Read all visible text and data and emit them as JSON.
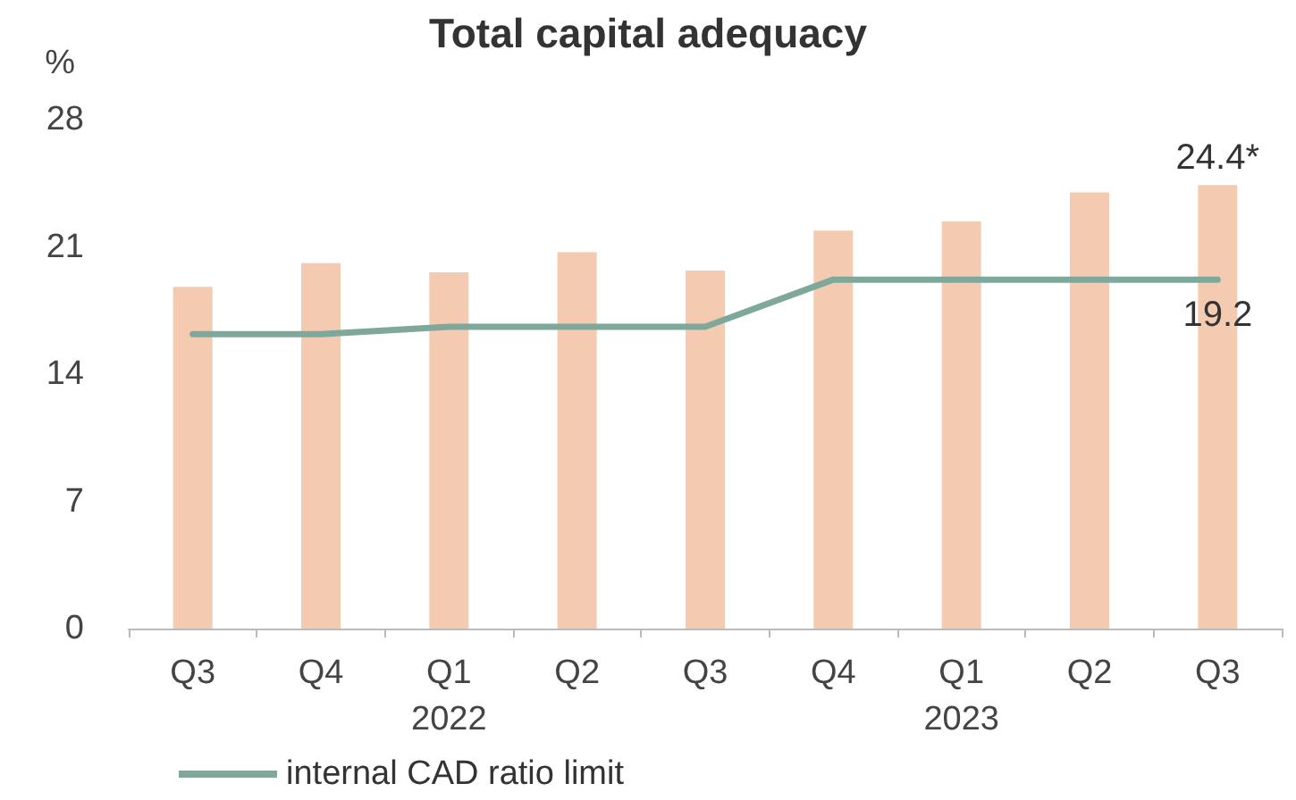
{
  "chart_data": {
    "type": "bar",
    "title": "Total capital adequacy",
    "ylabel": "%",
    "categories": [
      "Q3",
      "Q4",
      "Q1\n2022",
      "Q2",
      "Q3",
      "Q4",
      "Q1\n2023",
      "Q2",
      "Q3"
    ],
    "series": [
      {
        "color": "#f4cbb0",
        "values": [
          18.8,
          20.1,
          19.6,
          20.7,
          19.7,
          21.9,
          22.4,
          24.0,
          24.4
        ],
        "value_labels": [
          null,
          null,
          null,
          null,
          null,
          null,
          null,
          null,
          "24.4*"
        ]
      },
      {
        "type": "line",
        "name": "internal CAD ratio limit",
        "color": "#7fa89c",
        "values": [
          16.2,
          16.2,
          16.6,
          16.6,
          16.6,
          19.2,
          19.2,
          19.2,
          19.2
        ],
        "value_labels": [
          null,
          null,
          null,
          null,
          null,
          null,
          null,
          null,
          "19.2"
        ]
      }
    ],
    "ylim": [
      0,
      28
    ],
    "yticks": [
      0,
      7,
      14,
      21,
      28
    ],
    "grid": false,
    "legend": "bottom left",
    "marker": "none",
    "line_style": "solid"
  }
}
